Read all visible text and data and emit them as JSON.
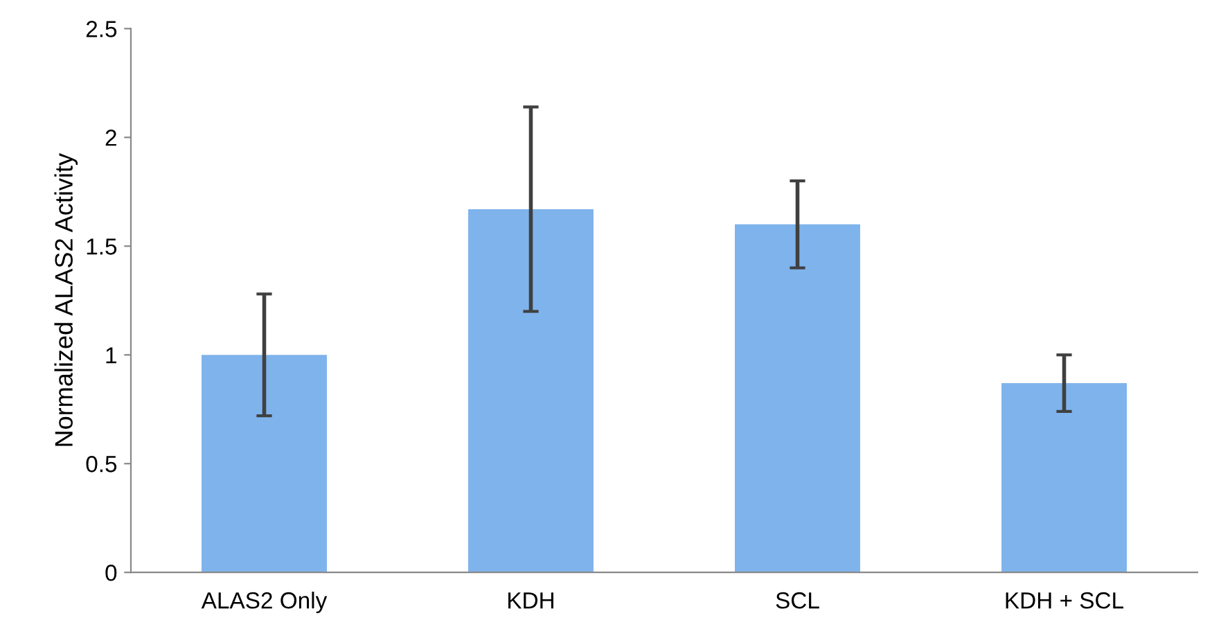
{
  "chart_data": {
    "type": "bar",
    "ylabel": "Normalized ALAS2 Activity",
    "categories": [
      "ALAS2 Only",
      "KDH",
      "SCL",
      "KDH + SCL"
    ],
    "values": [
      1.0,
      1.67,
      1.6,
      0.87
    ],
    "errors": [
      0.28,
      0.47,
      0.2,
      0.13
    ],
    "color": "#7fb3ec",
    "ylim": [
      0,
      2.5
    ],
    "yticks": [
      0,
      0.5,
      1,
      1.5,
      2,
      2.5
    ],
    "grid": false
  }
}
